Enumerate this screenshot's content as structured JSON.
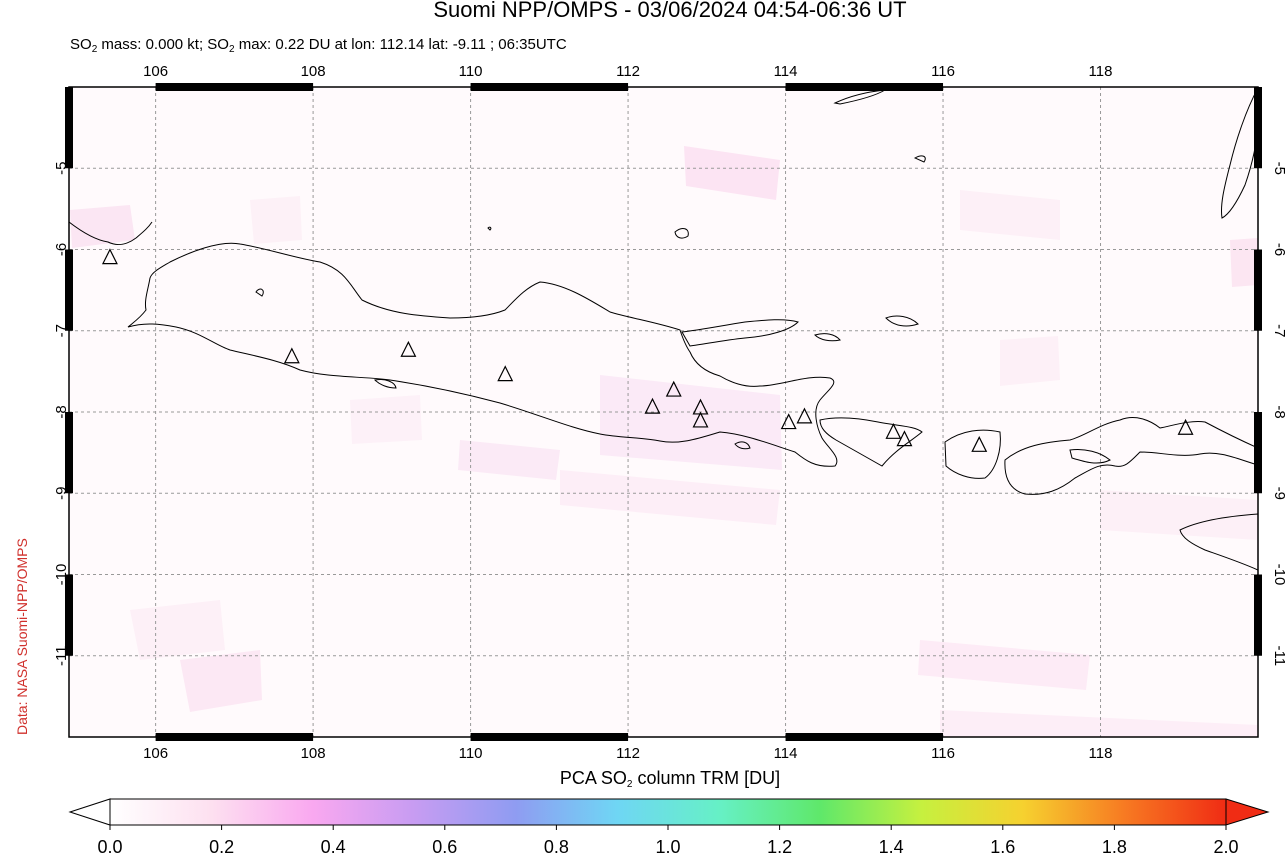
{
  "header": {
    "title": "Suomi NPP/OMPS - 03/06/2024 04:54-06:36 UT",
    "subtitle_prefix": "SO",
    "subtitle_sub1": "2",
    "subtitle_mid": " mass: 0.000 kt; SO",
    "subtitle_sub2": "2",
    "subtitle_rest": " max: 0.22 DU at lon: 112.14 lat: -9.11 ; 06:35UTC"
  },
  "credit": "Data: NASA Suomi-NPP/OMPS",
  "map": {
    "lon_range": [
      104.9,
      120.0
    ],
    "lat_range": [
      -12.0,
      -4.0
    ],
    "lon_ticks": [
      "106",
      "108",
      "110",
      "112",
      "114",
      "116",
      "118"
    ],
    "lat_ticks": [
      "-5",
      "-6",
      "-7",
      "-8",
      "-9",
      "-10",
      "-11"
    ],
    "gridlines": "dashed",
    "volcano_markers": [
      [
        105.42,
        -6.1
      ],
      [
        107.73,
        -7.32
      ],
      [
        109.21,
        -7.24
      ],
      [
        110.44,
        -7.54
      ],
      [
        112.31,
        -7.94
      ],
      [
        112.58,
        -7.73
      ],
      [
        112.92,
        -7.95
      ],
      [
        112.92,
        -8.11
      ],
      [
        114.04,
        -8.13
      ],
      [
        114.24,
        -8.06
      ],
      [
        115.37,
        -8.25
      ],
      [
        115.51,
        -8.34
      ],
      [
        116.46,
        -8.41
      ],
      [
        119.08,
        -8.2
      ]
    ]
  },
  "colorbar": {
    "title_prefix": "PCA SO",
    "title_sub": "2",
    "title_rest": " column TRM [DU]",
    "labels": [
      "0.0",
      "0.2",
      "0.4",
      "0.6",
      "0.8",
      "1.0",
      "1.2",
      "1.4",
      "1.6",
      "1.8",
      "2.0"
    ],
    "colors": [
      "#ffffff",
      "#fde0f0",
      "#f9a8f0",
      "#c79cf2",
      "#8f9cf2",
      "#6fd6f4",
      "#66f0c6",
      "#5fe86a",
      "#c6f03f",
      "#f6d12f",
      "#f77a22",
      "#f02c14"
    ]
  }
}
